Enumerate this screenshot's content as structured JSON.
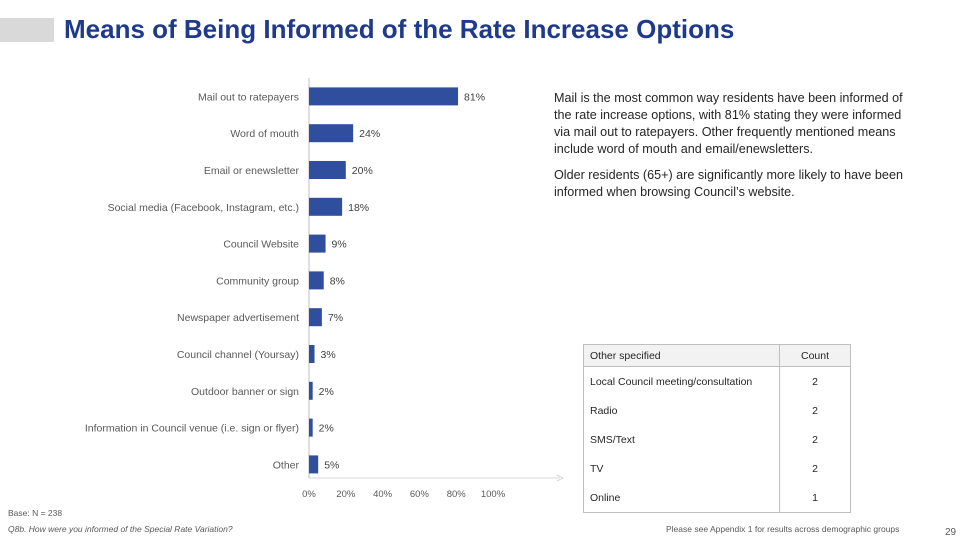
{
  "slide": {
    "title": "Means of Being Informed of the Rate Increase Options",
    "summary": [
      "Mail is the most common way residents have been informed of the rate increase options, with 81% stating they were informed via mail out to ratepayers. Other frequently mentioned means include word of mouth and email/enewsletters.",
      "Older residents (65+) are significantly more likely to have been informed when browsing Council’s website."
    ],
    "base_note": "Base: N = 238",
    "question": "Q8b. How were you informed of the Special Rate Variation?",
    "appendix_note": "Please see Appendix 1 for  results across demographic groups",
    "page_number": "29"
  },
  "other_table": {
    "headers": [
      "Other specified",
      "Count"
    ],
    "rows": [
      [
        "Local Council meeting/consultation",
        "2"
      ],
      [
        "Radio",
        "2"
      ],
      [
        "SMS/Text",
        "2"
      ],
      [
        "TV",
        "2"
      ],
      [
        "Online",
        "1"
      ]
    ]
  },
  "chart_data": {
    "type": "bar",
    "orientation": "horizontal",
    "categories": [
      "Mail out to ratepayers",
      "Word of mouth",
      "Email or enewsletter",
      "Social media (Facebook, Instagram, etc.)",
      "Council Website",
      "Community group",
      "Newspaper advertisement",
      "Council channel (Yoursay)",
      "Outdoor banner or sign",
      "Information in Council venue (i.e. sign or flyer)",
      "Other"
    ],
    "values": [
      81,
      24,
      20,
      18,
      9,
      8,
      7,
      3,
      2,
      2,
      5
    ],
    "value_labels": [
      "81%",
      "24%",
      "20%",
      "18%",
      "9%",
      "8%",
      "7%",
      "3%",
      "2%",
      "2%",
      "5%"
    ],
    "xlim": [
      0,
      100
    ],
    "x_ticks": [
      "0%",
      "20%",
      "40%",
      "60%",
      "80%",
      "100%"
    ],
    "bar_color": "#2f4f9e",
    "grid": false
  }
}
